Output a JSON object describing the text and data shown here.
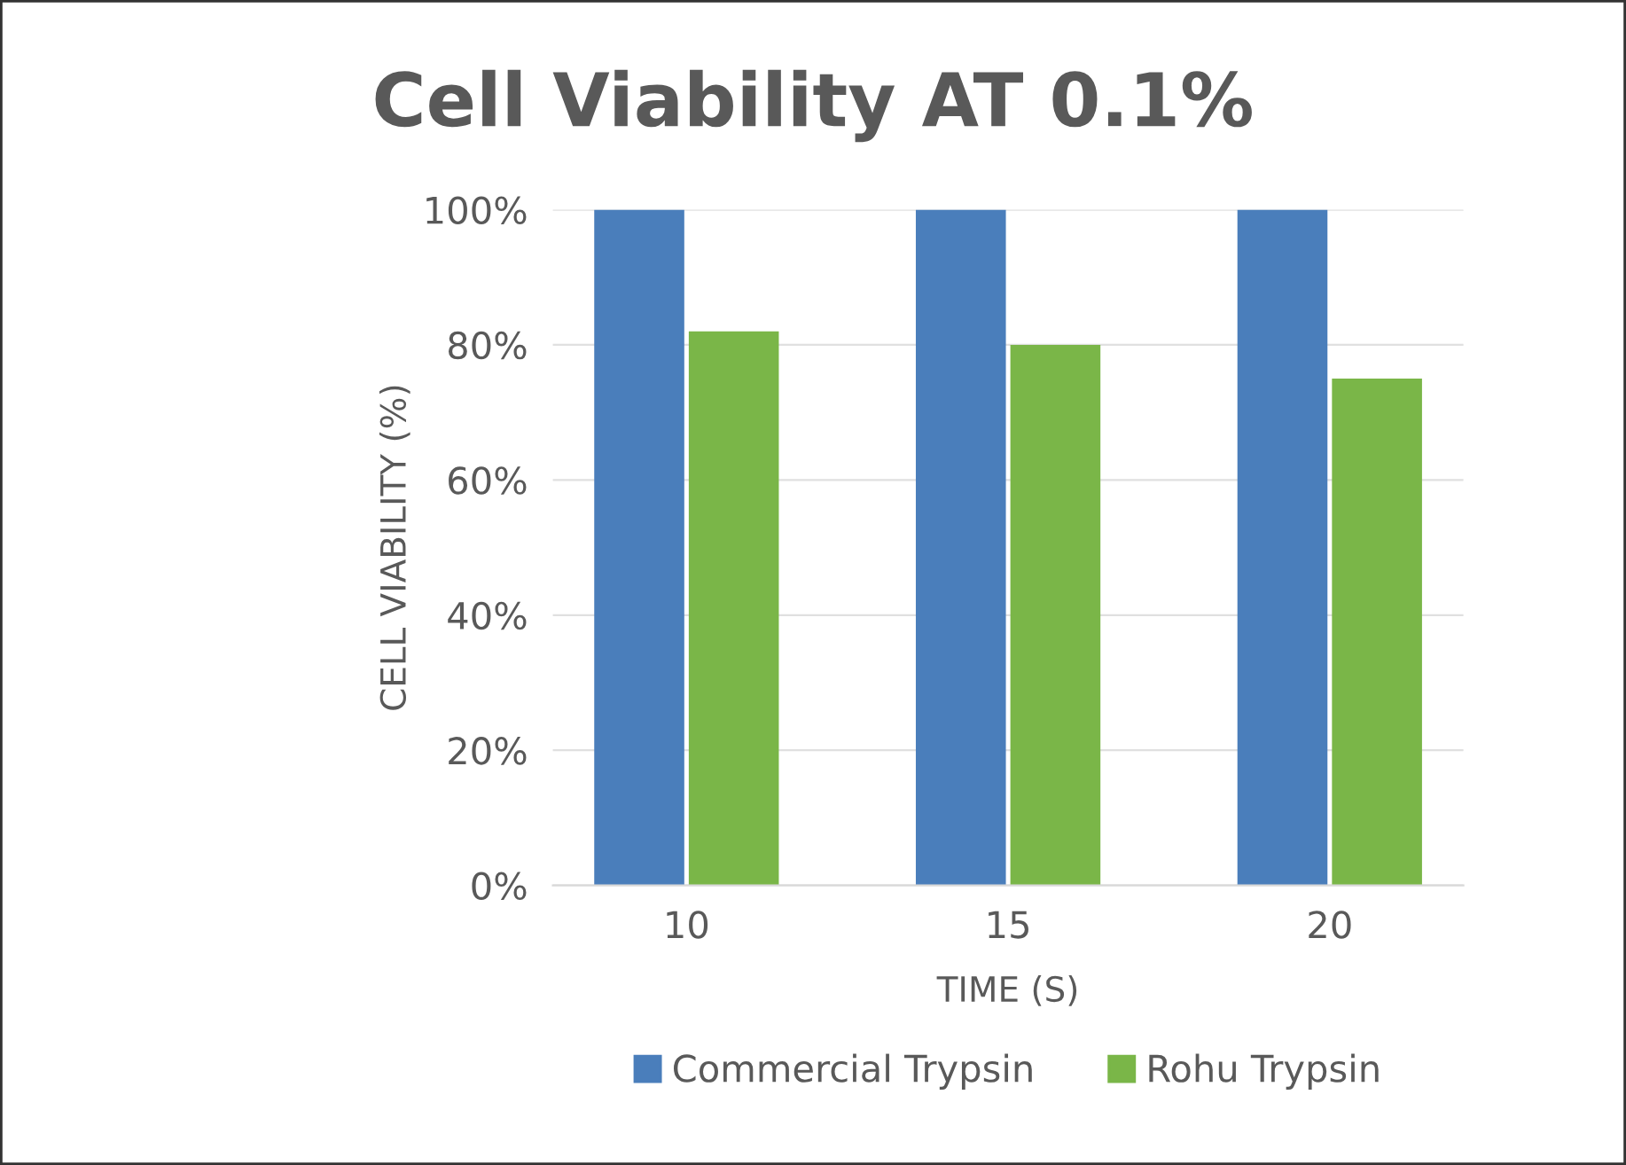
{
  "chart_data": {
    "type": "bar",
    "title": "Cell Viability AT 0.1%",
    "xlabel": "TIME (S)",
    "ylabel": "CELL VIABILITY (%)",
    "categories": [
      "10",
      "15",
      "20"
    ],
    "series": [
      {
        "name": "Commercial Trypsin",
        "color": "#4a7ebb",
        "values": [
          100,
          100,
          100
        ]
      },
      {
        "name": "Rohu Trypsin",
        "color": "#7ab648",
        "values": [
          82,
          80,
          75
        ]
      }
    ],
    "ylim": [
      0,
      100
    ],
    "yticks": [
      {
        "value": 0,
        "label": "0%"
      },
      {
        "value": 20,
        "label": "20%"
      },
      {
        "value": 40,
        "label": "40%"
      },
      {
        "value": 60,
        "label": "60%"
      },
      {
        "value": 80,
        "label": "80%"
      },
      {
        "value": 100,
        "label": "100%"
      }
    ],
    "grid": "y",
    "legend": "bottom"
  }
}
